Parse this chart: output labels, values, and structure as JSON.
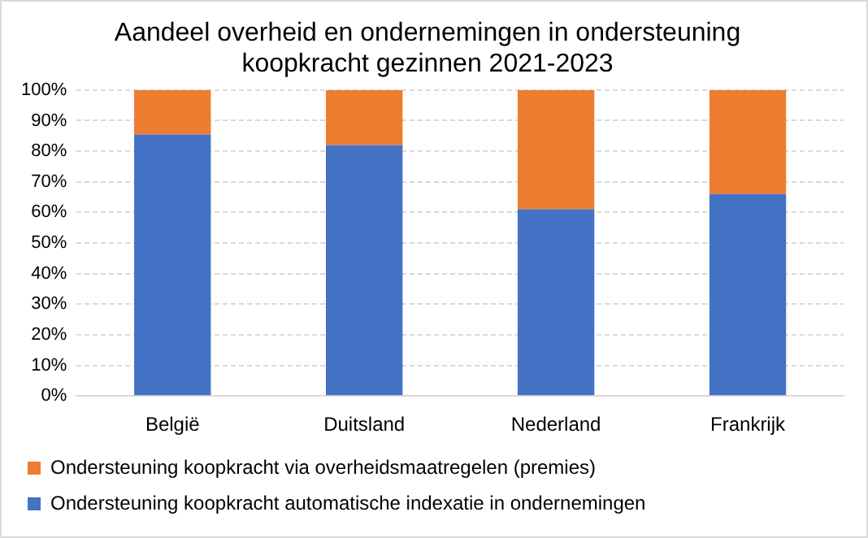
{
  "chart_data": {
    "type": "bar",
    "stacked": true,
    "title": "Aandeel overheid en ondernemingen in ondersteuning koopkracht gezinnen 2021-2023",
    "categories": [
      "België",
      "Duitsland",
      "Nederland",
      "Frankrijk"
    ],
    "series": [
      {
        "name": "Ondersteuning koopkracht automatische indexatie in ondernemingen",
        "color": "#4472c4",
        "values": [
          85.5,
          82,
          61,
          66
        ]
      },
      {
        "name": "Ondersteuning koopkracht via overheidsmaatregelen (premies)",
        "color": "#ed7d31",
        "values": [
          14.5,
          18,
          39,
          34
        ]
      }
    ],
    "ylim": [
      0,
      100
    ],
    "yticks": [
      {
        "value": 0,
        "label": "0%"
      },
      {
        "value": 10,
        "label": "10%"
      },
      {
        "value": 20,
        "label": "20%"
      },
      {
        "value": 30,
        "label": "30%"
      },
      {
        "value": 40,
        "label": "40%"
      },
      {
        "value": 50,
        "label": "50%"
      },
      {
        "value": 60,
        "label": "60%"
      },
      {
        "value": 70,
        "label": "70%"
      },
      {
        "value": 80,
        "label": "80%"
      },
      {
        "value": 90,
        "label": "90%"
      },
      {
        "value": 100,
        "label": "100%"
      }
    ],
    "grid": "y",
    "legend": "bottom"
  }
}
